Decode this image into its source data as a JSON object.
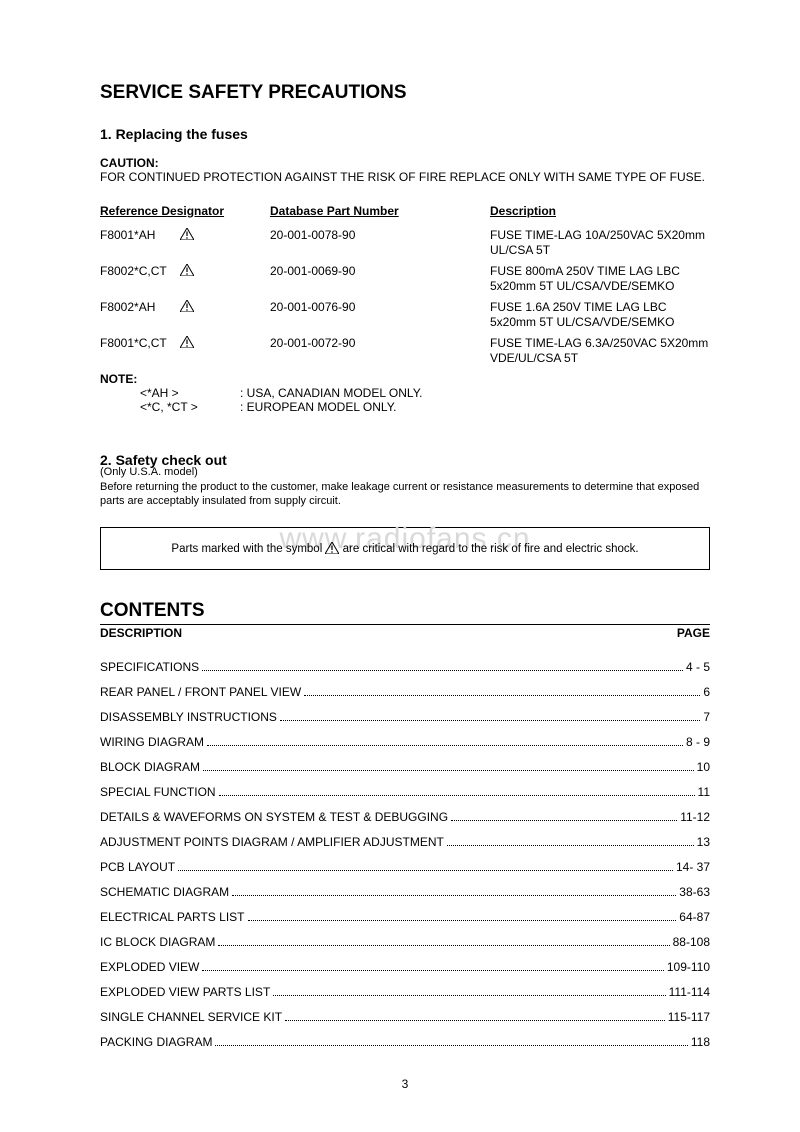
{
  "title": "SERVICE SAFETY PRECAUTIONS",
  "section1": {
    "heading": "1. Replacing the fuses",
    "cautionLabel": "CAUTION:",
    "cautionText": "FOR CONTINUED PROTECTION AGAINST THE RISK OF FIRE REPLACE ONLY WITH SAME TYPE OF FUSE.",
    "headers": {
      "ref": "Reference Designator",
      "part": "Database Part Number",
      "desc": "Description"
    },
    "rows": [
      {
        "ref": "F8001*AH",
        "part": "20-001-0078-90",
        "desc": "FUSE TIME-LAG 10A/250VAC 5X20mm UL/CSA 5T"
      },
      {
        "ref": "F8002*C,CT",
        "part": "20-001-0069-90",
        "desc": "FUSE 800mA 250V TIME LAG LBC 5x20mm 5T UL/CSA/VDE/SEMKO"
      },
      {
        "ref": "F8002*AH",
        "part": "20-001-0076-90",
        "desc": "FUSE 1.6A 250V TIME LAG LBC 5x20mm 5T UL/CSA/VDE/SEMKO"
      },
      {
        "ref": "F8001*C,CT",
        "part": "20-001-0072-90",
        "desc": "FUSE TIME-LAG 6.3A/250VAC 5X20mm VDE/UL/CSA 5T"
      }
    ],
    "noteLabel": "NOTE:",
    "notes": [
      {
        "key": "<*AH >",
        "val": ": USA, CANADIAN MODEL ONLY."
      },
      {
        "key": "<*C, *CT >",
        "val": ": EUROPEAN MODEL ONLY."
      }
    ]
  },
  "section2": {
    "heading": "2. Safety check out",
    "sub": "(Only U.S.A. model)",
    "text": "Before returning the product to the customer, make leakage current or resistance measurements to determine that exposed parts are acceptably insulated from supply circuit.",
    "boxPre": "Parts marked with the symbol ",
    "boxPost": " are critical with regard to the risk of fire and electric shock."
  },
  "watermark": "www.radiofans.cn",
  "contents": {
    "title": "CONTENTS",
    "hDesc": "DESCRIPTION",
    "hPage": "PAGE",
    "items": [
      {
        "label": "SPECIFICATIONS",
        "page": "4 - 5"
      },
      {
        "label": "REAR PANEL / FRONT PANEL VIEW ",
        "page": "6"
      },
      {
        "label": "DISASSEMBLY INSTRUCTIONS ",
        "page": "7"
      },
      {
        "label": "WIRING DIAGRAM ",
        "page": "8 - 9"
      },
      {
        "label": "BLOCK DIAGRAM",
        "page": "10"
      },
      {
        "label": "SPECIAL FUNCTION ",
        "page": "11"
      },
      {
        "label": "DETAILS & WAVEFORMS ON SYSTEM & TEST & DEBUGGING",
        "page": "11-12"
      },
      {
        "label": "ADJUSTMENT POINTS DIAGRAM / AMPLIFIER ADJUSTMENT ",
        "page": "13"
      },
      {
        "label": "PCB LAYOUT",
        "page": "14- 37"
      },
      {
        "label": "SCHEMATIC DIAGRAM",
        "page": "38-63"
      },
      {
        "label": "ELECTRICAL PARTS LIST",
        "page": "64-87"
      },
      {
        "label": "IC BLOCK DIAGRAM ",
        "page": "88-108"
      },
      {
        "label": "EXPLODED VIEW",
        "page": "109-110"
      },
      {
        "label": "EXPLODED VIEW PARTS LIST ",
        "page": "111-114"
      },
      {
        "label": "SINGLE CHANNEL SERVICE KIT ",
        "page": "115-117"
      },
      {
        "label": "PACKING DIAGRAM",
        "page": "118"
      }
    ]
  },
  "pageNumber": "3",
  "colors": {
    "text": "#000000",
    "bg": "#ffffff",
    "watermark": "#d9d9d9"
  }
}
